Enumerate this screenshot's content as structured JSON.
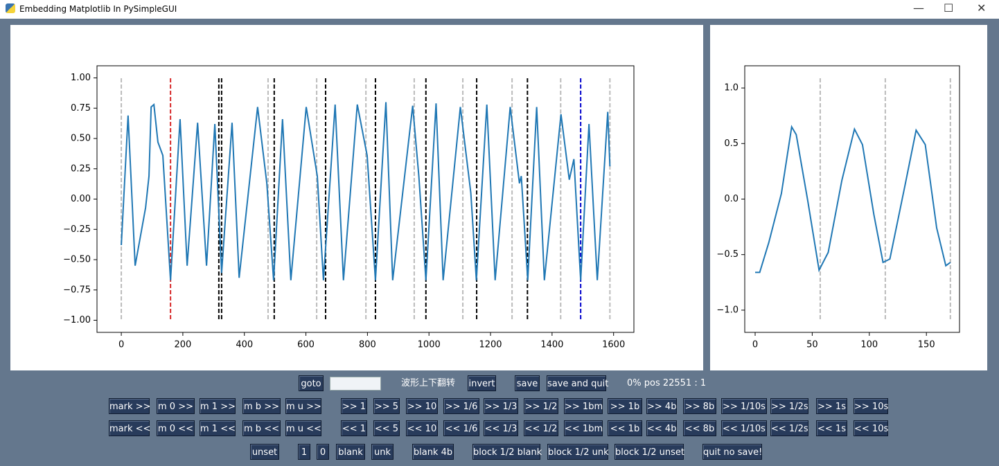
{
  "window": {
    "title": "Embedding Matplotlib In PySimpleGUI"
  },
  "chart_data": [
    {
      "type": "line",
      "xlim": [
        -79,
        1666
      ],
      "ylim": [
        -1.1,
        1.1
      ],
      "xticks": [
        0,
        200,
        400,
        600,
        800,
        1000,
        1200,
        1400,
        1600
      ],
      "yticks": [
        {
          "value": -1,
          "label": "−1.00"
        },
        {
          "value": -0.75,
          "label": "−0.75"
        },
        {
          "value": -0.5,
          "label": "−0.50"
        },
        {
          "value": -0.25,
          "label": "−0.25"
        },
        {
          "value": 0,
          "label": "0.00"
        },
        {
          "value": 0.25,
          "label": "0.25"
        },
        {
          "value": 0.5,
          "label": "0.50"
        },
        {
          "value": 0.75,
          "label": "0.75"
        },
        {
          "value": 1,
          "label": "1.00"
        }
      ],
      "x": [
        0,
        22,
        45,
        79,
        90,
        97,
        106,
        119,
        135,
        160,
        191,
        214,
        248,
        277,
        304,
        326,
        360,
        383,
        443,
        473,
        495,
        524,
        551,
        601,
        637,
        657,
        695,
        722,
        767,
        799,
        826,
        860,
        882,
        947,
        967,
        990,
        1023,
        1046,
        1102,
        1136,
        1154,
        1188,
        1215,
        1264,
        1294,
        1300,
        1321,
        1350,
        1375,
        1429,
        1456,
        1471,
        1493,
        1520,
        1547,
        1581,
        1588
      ],
      "series": [
        {
          "color": "#1f77b4",
          "values": [
            -0.38,
            0.69,
            -0.55,
            -0.07,
            0.19,
            0.76,
            0.78,
            0.47,
            0.36,
            -0.67,
            0.66,
            -0.55,
            0.63,
            -0.55,
            0.62,
            -0.61,
            0.63,
            -0.65,
            0.76,
            0.13,
            -0.67,
            0.66,
            -0.67,
            0.76,
            0.19,
            -0.67,
            0.78,
            -0.67,
            0.78,
            0.36,
            -0.67,
            0.8,
            -0.67,
            0.77,
            0.19,
            -0.67,
            0.79,
            -0.67,
            0.76,
            0.05,
            -0.67,
            0.78,
            -0.67,
            0.76,
            0.13,
            0.19,
            -0.67,
            0.76,
            -0.67,
            0.7,
            0.16,
            0.33,
            -0.67,
            0.62,
            -0.67,
            0.72,
            0.27
          ]
        }
      ],
      "markers": [
        {
          "x": 0,
          "color": "#bbbbbb"
        },
        {
          "x": 160,
          "color": "#d62728"
        },
        {
          "x": 317,
          "color": "#000000"
        },
        {
          "x": 326,
          "color": "#000000"
        },
        {
          "x": 477,
          "color": "#bbbbbb"
        },
        {
          "x": 497,
          "color": "#000000"
        },
        {
          "x": 635,
          "color": "#bbbbbb"
        },
        {
          "x": 664,
          "color": "#000000"
        },
        {
          "x": 795,
          "color": "#bbbbbb"
        },
        {
          "x": 826,
          "color": "#000000"
        },
        {
          "x": 952,
          "color": "#bbbbbb"
        },
        {
          "x": 990,
          "color": "#000000"
        },
        {
          "x": 1110,
          "color": "#bbbbbb"
        },
        {
          "x": 1155,
          "color": "#000000"
        },
        {
          "x": 1270,
          "color": "#bbbbbb"
        },
        {
          "x": 1320,
          "color": "#000000"
        },
        {
          "x": 1428,
          "color": "#bbbbbb"
        },
        {
          "x": 1493,
          "color": "#0000cc"
        },
        {
          "x": 1588,
          "color": "#bbbbbb"
        }
      ]
    },
    {
      "type": "line",
      "xlim": [
        -9.1,
        179
      ],
      "ylim": [
        -1.2,
        1.2
      ],
      "xticks": [
        0,
        50,
        100,
        150
      ],
      "yticks": [
        {
          "value": -1,
          "label": "−1.0"
        },
        {
          "value": -0.5,
          "label": "−0.5"
        },
        {
          "value": 0,
          "label": "0.0"
        },
        {
          "value": 0.5,
          "label": "0.5"
        },
        {
          "value": 1,
          "label": "1.0"
        }
      ],
      "x": [
        0,
        4,
        12,
        23,
        32,
        36,
        46,
        56,
        64,
        76,
        87,
        94,
        104,
        112,
        118,
        131,
        141,
        149,
        159,
        167,
        171
      ],
      "series": [
        {
          "color": "#1f77b4",
          "values": [
            -0.66,
            -0.66,
            -0.39,
            0.05,
            0.65,
            0.58,
            -0.01,
            -0.64,
            -0.48,
            0.17,
            0.63,
            0.49,
            -0.14,
            -0.57,
            -0.54,
            0.11,
            0.62,
            0.49,
            -0.26,
            -0.6,
            -0.57
          ]
        }
      ],
      "markers": [
        {
          "x": 57,
          "color": "#bbbbbb"
        },
        {
          "x": 114,
          "color": "#bbbbbb"
        },
        {
          "x": 171,
          "color": "#bbbbbb"
        }
      ]
    }
  ],
  "controls": {
    "row0": {
      "goto": "goto",
      "flip_label": "波形上下翻转",
      "invert": "invert",
      "save": "save",
      "save_quit": "save and quit",
      "status": "0% pos 22551 : 1"
    },
    "row1": [
      "mark >>",
      "m 0 >>",
      "m 1 >>",
      "m b >>",
      "m u >>",
      ">> 1",
      ">> 5",
      ">> 10",
      ">> 1/6",
      ">> 1/3",
      ">> 1/2",
      ">> 1bm",
      ">> 1b",
      ">> 4b",
      ">> 8b",
      ">> 1/10s",
      ">> 1/2s",
      ">> 1s",
      ">> 10s"
    ],
    "row2": [
      "mark <<",
      "m 0 <<",
      "m 1 <<",
      "m b <<",
      "m u <<",
      "<< 1",
      "<< 5",
      "<< 10",
      "<< 1/6",
      "<< 1/3",
      "<< 1/2",
      "<< 1bm",
      "<< 1b",
      "<< 4b",
      "<< 8b",
      "<< 1/10s",
      "<< 1/2s",
      "<< 1s",
      "<< 10s"
    ],
    "row3": [
      "unset",
      "1",
      "0",
      "blank",
      "unk",
      "blank 4b",
      "block 1/2 blank",
      "block 1/2 unk",
      "block 1/2 unset",
      "quit no save!"
    ]
  }
}
